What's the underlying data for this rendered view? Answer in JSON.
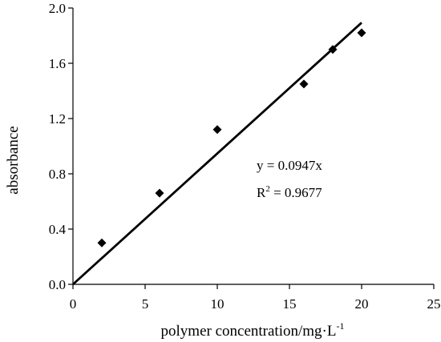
{
  "chart_data": {
    "type": "scatter",
    "title": "",
    "xlabel": "polymer concentration/mg·L",
    "xlabel_superscript": "-1",
    "ylabel": "absorbance",
    "xlim": [
      0,
      25
    ],
    "ylim": [
      0,
      2.0
    ],
    "xticks": [
      "0",
      "5",
      "10",
      "15",
      "20",
      "25"
    ],
    "yticks": [
      "0.0",
      "0.4",
      "0.8",
      "1.2",
      "1.6",
      "2.0"
    ],
    "grid": false,
    "legend": "none",
    "series": [
      {
        "marker": "diamond",
        "x": [
          2,
          6,
          10,
          16,
          18,
          20
        ],
        "y": [
          0.3,
          0.66,
          1.12,
          1.45,
          1.7,
          1.82
        ]
      }
    ],
    "trendline": {
      "slope": 0.0947,
      "x_range": [
        0,
        20
      ]
    },
    "annotations": {
      "equation": "y = 0.0947x",
      "r2_prefix": "R",
      "r2_superscript": "2",
      "r2_value": " = 0.9677"
    }
  },
  "colors": {
    "ink": "#000000",
    "background": "#ffffff"
  }
}
